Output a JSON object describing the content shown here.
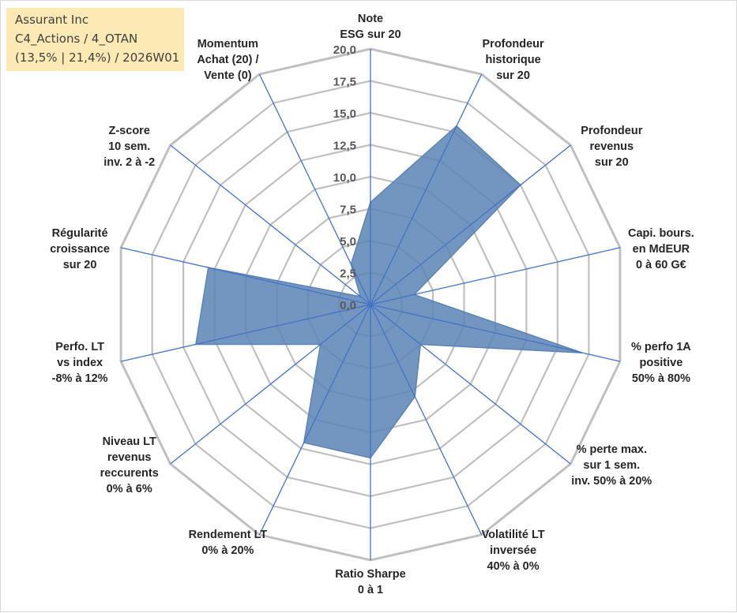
{
  "info_box": {
    "line1": "Assurant Inc",
    "line2": "C4_Actions / 4_OTAN",
    "line3": "(13,5% | 21,4%) / 2026W01"
  },
  "colors": {
    "series_fill": "#5b84b5",
    "series_line": "#5b84b5",
    "spokes": "#4472c4",
    "rings": "#c0c0c0",
    "info_box_bg": "#fde9b4"
  },
  "chart_data": {
    "type": "radar",
    "title": "",
    "rmin": 0,
    "rmax": 20,
    "rstep": 2.5,
    "grid": true,
    "tick_labels": [
      "0,0",
      "2,5",
      "5,0",
      "7,5",
      "10,0",
      "12,5",
      "15,0",
      "17,5",
      "20,0"
    ],
    "categories": [
      [
        "Note",
        "ESG sur 20"
      ],
      [
        "Profondeur",
        "historique",
        "sur 20"
      ],
      [
        "Profondeur",
        "revenus",
        "sur 20"
      ],
      [
        "Capi. bours.",
        "en MdEUR",
        "0 à 60 G€"
      ],
      [
        "% perfo 1A",
        "positive",
        "50% à 80%"
      ],
      [
        "% perte max.",
        "sur 1 sem.",
        "inv. 50% à 20%"
      ],
      [
        "Volatilité LT",
        "inversée",
        "40% à 0%"
      ],
      [
        "Ratio Sharpe",
        "0 à 1"
      ],
      [
        "Rendement LT",
        "0% à 20%"
      ],
      [
        "Niveau LT",
        "revenus",
        "reccurents",
        "0% à 6%"
      ],
      [
        "Perfo. LT",
        "vs index",
        "-8% à 12%"
      ],
      [
        "Régularité",
        "croissance",
        "sur 20"
      ],
      [
        "Z-score",
        "10 sem.",
        "inv. 2 à -2"
      ],
      [
        "Momentum",
        "Achat (20) /",
        "Vente (0)"
      ]
    ],
    "series": [
      {
        "values": [
          8.0,
          15.5,
          15.0,
          3.5,
          17.0,
          5.0,
          8.0,
          12.0,
          12.0,
          5.0,
          14.0,
          13.0,
          1.0,
          3.5
        ]
      }
    ]
  }
}
